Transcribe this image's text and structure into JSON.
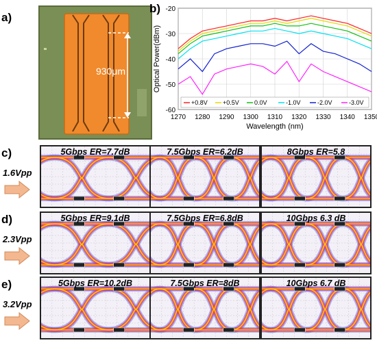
{
  "panel_a": {
    "letter": "a)",
    "length_label": "930μm"
  },
  "panel_b": {
    "letter": "b)"
  },
  "chart_data": {
    "type": "line",
    "xlabel": "Wavelength (nm)",
    "ylabel": "Optical Power(dBm)",
    "xlim": [
      1270,
      1350
    ],
    "ylim": [
      -60,
      -20
    ],
    "xticks": [
      1270,
      1280,
      1290,
      1300,
      1310,
      1320,
      1330,
      1340,
      1350
    ],
    "yticks": [
      -20,
      -30,
      -40,
      -50,
      -60
    ],
    "grid": true,
    "legend_position": "bottom",
    "x": [
      1270,
      1275,
      1280,
      1285,
      1290,
      1295,
      1300,
      1305,
      1310,
      1315,
      1320,
      1325,
      1330,
      1335,
      1340,
      1345,
      1350
    ],
    "series": [
      {
        "name": "+0.8V",
        "color": "#ff2020",
        "values": [
          -36,
          -32,
          -29,
          -28,
          -27,
          -26,
          -25,
          -25,
          -24,
          -25,
          -24,
          -23,
          -24,
          -25,
          -26,
          -28,
          -30
        ]
      },
      {
        "name": "+0.5V",
        "color": "#e6d800",
        "values": [
          -37,
          -33,
          -30,
          -29,
          -28,
          -27,
          -26,
          -26,
          -25,
          -26,
          -25,
          -24,
          -25,
          -26,
          -27,
          -29,
          -31
        ]
      },
      {
        "name": "0.0V",
        "color": "#10c010",
        "values": [
          -38,
          -34,
          -31,
          -30,
          -29,
          -28,
          -27,
          -27,
          -26,
          -27,
          -27,
          -26,
          -27,
          -28,
          -29,
          -31,
          -33
        ]
      },
      {
        "name": "-1.0V",
        "color": "#00e0f0",
        "values": [
          -40,
          -36,
          -33,
          -32,
          -31,
          -30,
          -29,
          -29,
          -28,
          -29,
          -30,
          -29,
          -30,
          -31,
          -32,
          -34,
          -36
        ]
      },
      {
        "name": "-2.0V",
        "color": "#1020d0",
        "values": [
          -44,
          -40,
          -45,
          -38,
          -36,
          -35,
          -34,
          -34,
          -35,
          -33,
          -38,
          -34,
          -37,
          -38,
          -40,
          -42,
          -45
        ]
      },
      {
        "name": "-3.0V",
        "color": "#ff20ff",
        "values": [
          -50,
          -47,
          -54,
          -46,
          -44,
          -43,
          -42,
          -43,
          -46,
          -41,
          -49,
          -42,
          -45,
          -47,
          -49,
          -51,
          -53
        ]
      }
    ]
  },
  "rows": [
    {
      "letter": "c)",
      "vpp": "1.6Vpp",
      "eyes": [
        {
          "label": "5Gbps ER=7.7dB",
          "openness": 0.8
        },
        {
          "label": "7.5Gbps ER=6.2dB",
          "openness": 0.55
        },
        {
          "label": "8Gbps ER=5.8",
          "openness": 0.45
        }
      ]
    },
    {
      "letter": "d)",
      "vpp": "2.3Vpp",
      "eyes": [
        {
          "label": "5Gbps ER=9.1dB",
          "openness": 0.82
        },
        {
          "label": "7.5Gbps ER=6.8dB",
          "openness": 0.6
        },
        {
          "label": "10Gbps 6.3 dB",
          "openness": 0.5
        }
      ]
    },
    {
      "letter": "e)",
      "vpp": "3.2Vpp",
      "eyes": [
        {
          "label": "5Gbps ER=10.2dB",
          "openness": 0.9
        },
        {
          "label": "7.5Gbps ER=8dB",
          "openness": 0.65
        },
        {
          "label": "10Gbps 6.7 dB",
          "openness": 0.5
        }
      ]
    }
  ]
}
